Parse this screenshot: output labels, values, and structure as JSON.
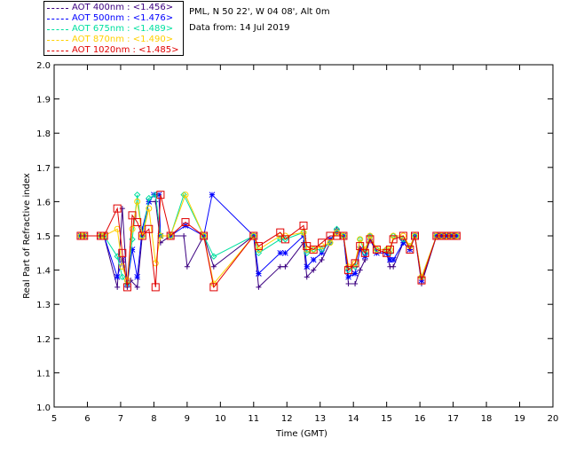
{
  "header": {
    "site": "PML, N 50 22', W 04 08', Alt 0m",
    "date": "Data from: 14 Jul 2019"
  },
  "chart_data": {
    "type": "scatter",
    "title": "",
    "xlabel": "Time (GMT)",
    "ylabel": "Real Part of Refractive index",
    "xlim": [
      5,
      20
    ],
    "ylim": [
      1.0,
      2.0
    ],
    "xticks": [
      "5",
      "6",
      "7",
      "8",
      "9",
      "10",
      "11",
      "12",
      "13",
      "14",
      "15",
      "16",
      "17",
      "18",
      "19",
      "20"
    ],
    "yticks": [
      "1.0",
      "1.1",
      "1.2",
      "1.3",
      "1.4",
      "1.5",
      "1.6",
      "1.7",
      "1.8",
      "1.9",
      "2.0"
    ],
    "grid": false,
    "legend_position": "top-left",
    "series": [
      {
        "name": "AOT  400nm : <1.456>",
        "color": "#3b0080",
        "marker": "plus",
        "points": [
          [
            5.8,
            1.5
          ],
          [
            5.9,
            1.5
          ],
          [
            6.4,
            1.5
          ],
          [
            6.5,
            1.5
          ],
          [
            6.9,
            1.35
          ],
          [
            7.05,
            1.58
          ],
          [
            7.2,
            1.35
          ],
          [
            7.3,
            1.37
          ],
          [
            7.5,
            1.35
          ],
          [
            7.65,
            1.5
          ],
          [
            7.85,
            1.6
          ],
          [
            8.05,
            1.6
          ],
          [
            8.2,
            1.48
          ],
          [
            8.5,
            1.5
          ],
          [
            8.9,
            1.5
          ],
          [
            9.0,
            1.41
          ],
          [
            9.5,
            1.5
          ],
          [
            9.8,
            1.41
          ],
          [
            11.0,
            1.5
          ],
          [
            11.15,
            1.35
          ],
          [
            11.8,
            1.41
          ],
          [
            11.95,
            1.41
          ],
          [
            12.5,
            1.48
          ],
          [
            12.6,
            1.38
          ],
          [
            12.8,
            1.4
          ],
          [
            13.05,
            1.43
          ],
          [
            13.3,
            1.48
          ],
          [
            13.5,
            1.52
          ],
          [
            13.7,
            1.5
          ],
          [
            13.85,
            1.36
          ],
          [
            14.05,
            1.36
          ],
          [
            14.2,
            1.4
          ],
          [
            14.35,
            1.43
          ],
          [
            14.5,
            1.5
          ],
          [
            14.7,
            1.45
          ],
          [
            15.0,
            1.45
          ],
          [
            15.1,
            1.41
          ],
          [
            15.2,
            1.41
          ],
          [
            15.5,
            1.48
          ],
          [
            15.7,
            1.46
          ],
          [
            15.85,
            1.5
          ],
          [
            16.05,
            1.36
          ],
          [
            16.5,
            1.5
          ],
          [
            16.65,
            1.5
          ],
          [
            16.8,
            1.5
          ],
          [
            16.95,
            1.5
          ],
          [
            17.1,
            1.5
          ]
        ]
      },
      {
        "name": "AOT  500nm : <1.476>",
        "color": "#0000ff",
        "marker": "star",
        "points": [
          [
            5.8,
            1.5
          ],
          [
            5.9,
            1.5
          ],
          [
            6.4,
            1.5
          ],
          [
            6.5,
            1.5
          ],
          [
            6.9,
            1.38
          ],
          [
            7.05,
            1.43
          ],
          [
            7.2,
            1.36
          ],
          [
            7.35,
            1.46
          ],
          [
            7.5,
            1.38
          ],
          [
            7.65,
            1.52
          ],
          [
            7.85,
            1.6
          ],
          [
            8.0,
            1.62
          ],
          [
            8.15,
            1.62
          ],
          [
            8.2,
            1.5
          ],
          [
            8.5,
            1.5
          ],
          [
            8.95,
            1.53
          ],
          [
            9.5,
            1.5
          ],
          [
            9.75,
            1.62
          ],
          [
            11.0,
            1.5
          ],
          [
            11.15,
            1.39
          ],
          [
            11.8,
            1.45
          ],
          [
            11.95,
            1.45
          ],
          [
            12.5,
            1.5
          ],
          [
            12.6,
            1.41
          ],
          [
            12.8,
            1.43
          ],
          [
            13.05,
            1.45
          ],
          [
            13.3,
            1.49
          ],
          [
            13.5,
            1.51
          ],
          [
            13.7,
            1.5
          ],
          [
            13.85,
            1.38
          ],
          [
            14.05,
            1.39
          ],
          [
            14.2,
            1.46
          ],
          [
            14.35,
            1.44
          ],
          [
            14.5,
            1.49
          ],
          [
            14.7,
            1.45
          ],
          [
            15.0,
            1.45
          ],
          [
            15.1,
            1.43
          ],
          [
            15.2,
            1.43
          ],
          [
            15.5,
            1.48
          ],
          [
            15.7,
            1.46
          ],
          [
            15.85,
            1.5
          ],
          [
            16.05,
            1.37
          ],
          [
            16.5,
            1.5
          ],
          [
            16.65,
            1.5
          ],
          [
            16.8,
            1.5
          ],
          [
            16.95,
            1.5
          ],
          [
            17.1,
            1.5
          ]
        ]
      },
      {
        "name": "AOT  675nm : <1.489>",
        "color": "#00e0a0",
        "marker": "diamond",
        "points": [
          [
            5.8,
            1.5
          ],
          [
            5.9,
            1.5
          ],
          [
            6.4,
            1.5
          ],
          [
            6.5,
            1.5
          ],
          [
            6.9,
            1.44
          ],
          [
            7.05,
            1.38
          ],
          [
            7.2,
            1.36
          ],
          [
            7.35,
            1.49
          ],
          [
            7.5,
            1.62
          ],
          [
            7.65,
            1.5
          ],
          [
            7.85,
            1.61
          ],
          [
            8.05,
            1.62
          ],
          [
            8.2,
            1.5
          ],
          [
            8.5,
            1.5
          ],
          [
            8.9,
            1.62
          ],
          [
            9.5,
            1.5
          ],
          [
            9.8,
            1.44
          ],
          [
            11.0,
            1.5
          ],
          [
            11.15,
            1.45
          ],
          [
            11.8,
            1.49
          ],
          [
            11.95,
            1.49
          ],
          [
            12.5,
            1.51
          ],
          [
            12.6,
            1.45
          ],
          [
            12.8,
            1.46
          ],
          [
            13.05,
            1.46
          ],
          [
            13.3,
            1.48
          ],
          [
            13.5,
            1.52
          ],
          [
            13.7,
            1.5
          ],
          [
            13.85,
            1.4
          ],
          [
            14.05,
            1.41
          ],
          [
            14.2,
            1.49
          ],
          [
            14.35,
            1.45
          ],
          [
            14.5,
            1.5
          ],
          [
            14.7,
            1.46
          ],
          [
            15.0,
            1.46
          ],
          [
            15.1,
            1.45
          ],
          [
            15.2,
            1.5
          ],
          [
            15.5,
            1.49
          ],
          [
            15.7,
            1.47
          ],
          [
            15.85,
            1.5
          ],
          [
            16.05,
            1.38
          ],
          [
            16.5,
            1.5
          ],
          [
            16.65,
            1.5
          ],
          [
            16.8,
            1.5
          ],
          [
            16.95,
            1.5
          ],
          [
            17.1,
            1.5
          ]
        ]
      },
      {
        "name": "AOT  870nm : <1.490>",
        "color": "#ffd000",
        "marker": "circle",
        "points": [
          [
            5.8,
            1.5
          ],
          [
            5.9,
            1.5
          ],
          [
            6.4,
            1.5
          ],
          [
            6.5,
            1.5
          ],
          [
            6.9,
            1.52
          ],
          [
            7.05,
            1.41
          ],
          [
            7.2,
            1.37
          ],
          [
            7.35,
            1.52
          ],
          [
            7.5,
            1.6
          ],
          [
            7.65,
            1.5
          ],
          [
            7.85,
            1.58
          ],
          [
            8.05,
            1.42
          ],
          [
            8.2,
            1.5
          ],
          [
            8.5,
            1.5
          ],
          [
            8.95,
            1.62
          ],
          [
            9.5,
            1.5
          ],
          [
            9.8,
            1.36
          ],
          [
            11.0,
            1.5
          ],
          [
            11.15,
            1.46
          ],
          [
            11.8,
            1.5
          ],
          [
            11.95,
            1.5
          ],
          [
            12.5,
            1.51
          ],
          [
            12.6,
            1.46
          ],
          [
            12.8,
            1.46
          ],
          [
            13.05,
            1.47
          ],
          [
            13.3,
            1.48
          ],
          [
            13.5,
            1.51
          ],
          [
            13.7,
            1.5
          ],
          [
            13.85,
            1.41
          ],
          [
            14.05,
            1.42
          ],
          [
            14.2,
            1.49
          ],
          [
            14.35,
            1.46
          ],
          [
            14.5,
            1.5
          ],
          [
            14.7,
            1.46
          ],
          [
            15.0,
            1.46
          ],
          [
            15.1,
            1.46
          ],
          [
            15.2,
            1.5
          ],
          [
            15.5,
            1.5
          ],
          [
            15.7,
            1.47
          ],
          [
            15.85,
            1.5
          ],
          [
            16.05,
            1.38
          ],
          [
            16.5,
            1.5
          ],
          [
            16.65,
            1.5
          ],
          [
            16.8,
            1.5
          ],
          [
            16.95,
            1.5
          ],
          [
            17.1,
            1.5
          ]
        ]
      },
      {
        "name": "AOT 1020nm : <1.485>",
        "color": "#e00000",
        "marker": "square",
        "points": [
          [
            5.8,
            1.5
          ],
          [
            5.9,
            1.5
          ],
          [
            6.4,
            1.5
          ],
          [
            6.5,
            1.5
          ],
          [
            6.9,
            1.58
          ],
          [
            7.05,
            1.45
          ],
          [
            7.2,
            1.35
          ],
          [
            7.35,
            1.56
          ],
          [
            7.5,
            1.54
          ],
          [
            7.65,
            1.5
          ],
          [
            7.85,
            1.52
          ],
          [
            8.05,
            1.35
          ],
          [
            8.2,
            1.62
          ],
          [
            8.5,
            1.5
          ],
          [
            8.95,
            1.54
          ],
          [
            9.5,
            1.5
          ],
          [
            9.8,
            1.35
          ],
          [
            11.0,
            1.5
          ],
          [
            11.15,
            1.47
          ],
          [
            11.8,
            1.51
          ],
          [
            11.95,
            1.49
          ],
          [
            12.5,
            1.53
          ],
          [
            12.6,
            1.47
          ],
          [
            12.8,
            1.46
          ],
          [
            13.05,
            1.48
          ],
          [
            13.3,
            1.5
          ],
          [
            13.5,
            1.5
          ],
          [
            13.7,
            1.5
          ],
          [
            13.85,
            1.4
          ],
          [
            14.05,
            1.42
          ],
          [
            14.2,
            1.47
          ],
          [
            14.35,
            1.45
          ],
          [
            14.5,
            1.49
          ],
          [
            14.7,
            1.46
          ],
          [
            15.0,
            1.45
          ],
          [
            15.1,
            1.46
          ],
          [
            15.2,
            1.49
          ],
          [
            15.5,
            1.5
          ],
          [
            15.7,
            1.46
          ],
          [
            15.85,
            1.5
          ],
          [
            16.05,
            1.37
          ],
          [
            16.5,
            1.5
          ],
          [
            16.65,
            1.5
          ],
          [
            16.8,
            1.5
          ],
          [
            16.95,
            1.5
          ],
          [
            17.1,
            1.5
          ]
        ]
      }
    ]
  }
}
